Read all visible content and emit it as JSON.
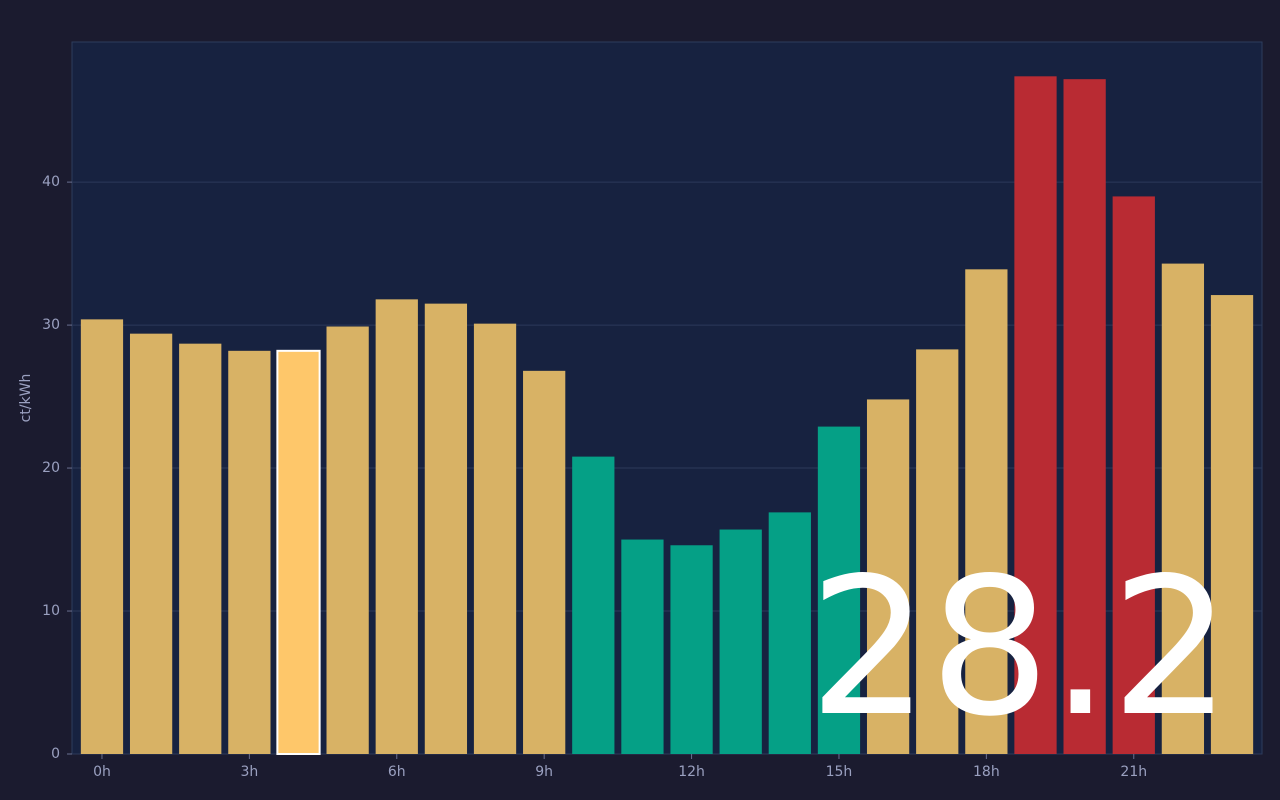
{
  "chart_data": {
    "type": "bar",
    "y_label": "ct/kWh",
    "categories": [
      "0h",
      null,
      null,
      "3h",
      null,
      null,
      "6h",
      null,
      null,
      "9h",
      null,
      null,
      "12h",
      null,
      null,
      "15h",
      null,
      null,
      "18h",
      null,
      null,
      "21h",
      null,
      null
    ],
    "values": [
      30.4,
      29.4,
      28.7,
      28.2,
      28.2,
      29.9,
      31.8,
      31.5,
      30.1,
      26.8,
      20.8,
      15.0,
      14.6,
      15.7,
      16.9,
      22.9,
      24.8,
      28.3,
      33.9,
      47.4,
      47.2,
      39.0,
      34.3,
      32.1
    ],
    "colors": [
      "#d8b265",
      "#d8b265",
      "#d8b265",
      "#d8b265",
      "#fec76a",
      "#d8b265",
      "#d8b265",
      "#d8b265",
      "#d8b265",
      "#d8b265",
      "#05a086",
      "#05a086",
      "#05a086",
      "#05a086",
      "#05a086",
      "#05a086",
      "#d8b265",
      "#d8b265",
      "#d8b265",
      "#b92b33",
      "#b92b33",
      "#b92b33",
      "#d8b265",
      "#d8b265"
    ],
    "highlight_index": 4,
    "annotation": "28.2",
    "ylim": [
      0,
      49.8
    ],
    "yticks": [
      0,
      10,
      20,
      30,
      40
    ],
    "grid": true
  }
}
